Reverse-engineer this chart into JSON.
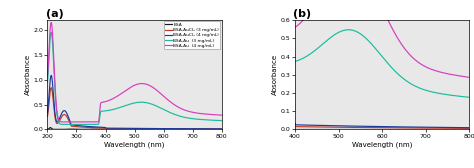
{
  "title_a": "(a)",
  "title_b": "(b)",
  "xlabel": "Wavelength (nm)",
  "ylabel": "Absorbance",
  "legend_labels": [
    "BSA",
    "BSA-AuCl₃ (3 mg/mL)",
    "BSA-AuCl₃ (4 mg/mL)",
    "BSA-Au  (3 mg/mL)",
    "BSA-Au  (4 mg/mL)"
  ],
  "colors": [
    "#1a1a1a",
    "#c0392b",
    "#1a3a9c",
    "#1abc9c",
    "#d63dbe"
  ],
  "xlim_a": [
    200,
    800
  ],
  "ylim_a": [
    0.0,
    2.2
  ],
  "xticks_a": [
    200,
    300,
    400,
    500,
    600,
    700,
    800
  ],
  "yticks_a": [
    0.0,
    0.5,
    1.0,
    1.5,
    2.0
  ],
  "xlim_b": [
    400,
    800
  ],
  "ylim_b": [
    0.0,
    0.6
  ],
  "xticks_b": [
    400,
    500,
    600,
    700,
    800
  ],
  "yticks_b": [
    0.0,
    0.1,
    0.2,
    0.3,
    0.4,
    0.5,
    0.6
  ],
  "bg_color": "#e8e8e8"
}
